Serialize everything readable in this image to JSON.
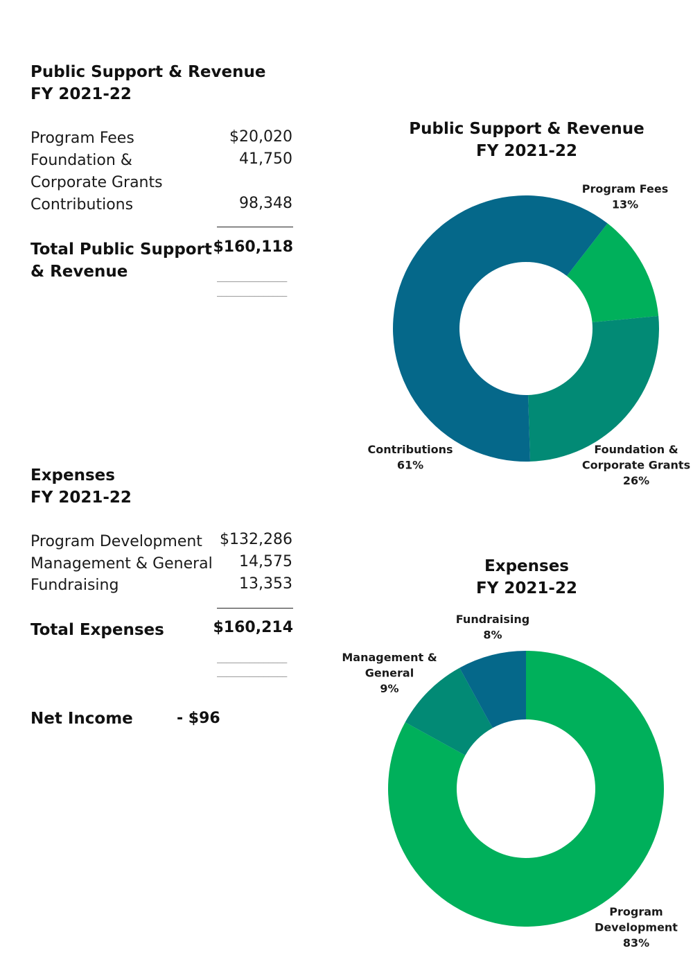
{
  "revenue": {
    "title_line1": "Public Support & Revenue",
    "title_line2": "FY 2021-22",
    "items": [
      {
        "label": "Program Fees",
        "value": "$20,020"
      },
      {
        "label": "Foundation &",
        "value": "41,750"
      },
      {
        "label": "Corporate Grants",
        "value": ""
      },
      {
        "label": "Contributions",
        "value": "98,348"
      }
    ],
    "total_line1": "Total Public Support",
    "total_line2": "& Revenue",
    "total_value": "$160,118",
    "dashes": "_______________"
  },
  "expenses": {
    "title_line1": "Expenses",
    "title_line2": "FY 2021-22",
    "items": [
      {
        "label": "Program Development",
        "value": "$132,286"
      },
      {
        "label": "Management & General",
        "value": "14,575"
      },
      {
        "label": "Fundraising",
        "value": "13,353"
      }
    ],
    "total_label": "Total Expenses",
    "total_value": "$160,214",
    "dashes": "_______________"
  },
  "net_income": {
    "label": "Net Income",
    "value": "- $96"
  },
  "colors": {
    "bright_green": "#00b05b",
    "teal": "#028a75",
    "dark_blue": "#05688a"
  },
  "chart_data": [
    {
      "type": "pie",
      "donut": true,
      "title_line1": "Public Support & Revenue",
      "title_line2": "FY 2021-22",
      "categories": [
        "Program Fees",
        "Foundation & Corporate Grants",
        "Contributions"
      ],
      "values": [
        13,
        26,
        61
      ],
      "labels": [
        {
          "lines": [
            "Program Fees"
          ],
          "pct": "13%"
        },
        {
          "lines": [
            "Foundation &",
            "Corporate Grants"
          ],
          "pct": "26%"
        },
        {
          "lines": [
            "Contributions"
          ],
          "pct": "61%"
        }
      ],
      "colors": [
        "#00b05b",
        "#028a75",
        "#05688a"
      ]
    },
    {
      "type": "pie",
      "donut": true,
      "title_line1": "Expenses",
      "title_line2": "FY 2021-22",
      "categories": [
        "Program Development",
        "Management & General",
        "Fundraising"
      ],
      "values": [
        83,
        9,
        8
      ],
      "labels": [
        {
          "lines": [
            "Program",
            "Development"
          ],
          "pct": "83%"
        },
        {
          "lines": [
            "Management &",
            "General"
          ],
          "pct": "9%"
        },
        {
          "lines": [
            "Fundraising"
          ],
          "pct": "8%"
        }
      ],
      "colors": [
        "#00b05b",
        "#028a75",
        "#05688a"
      ]
    }
  ]
}
